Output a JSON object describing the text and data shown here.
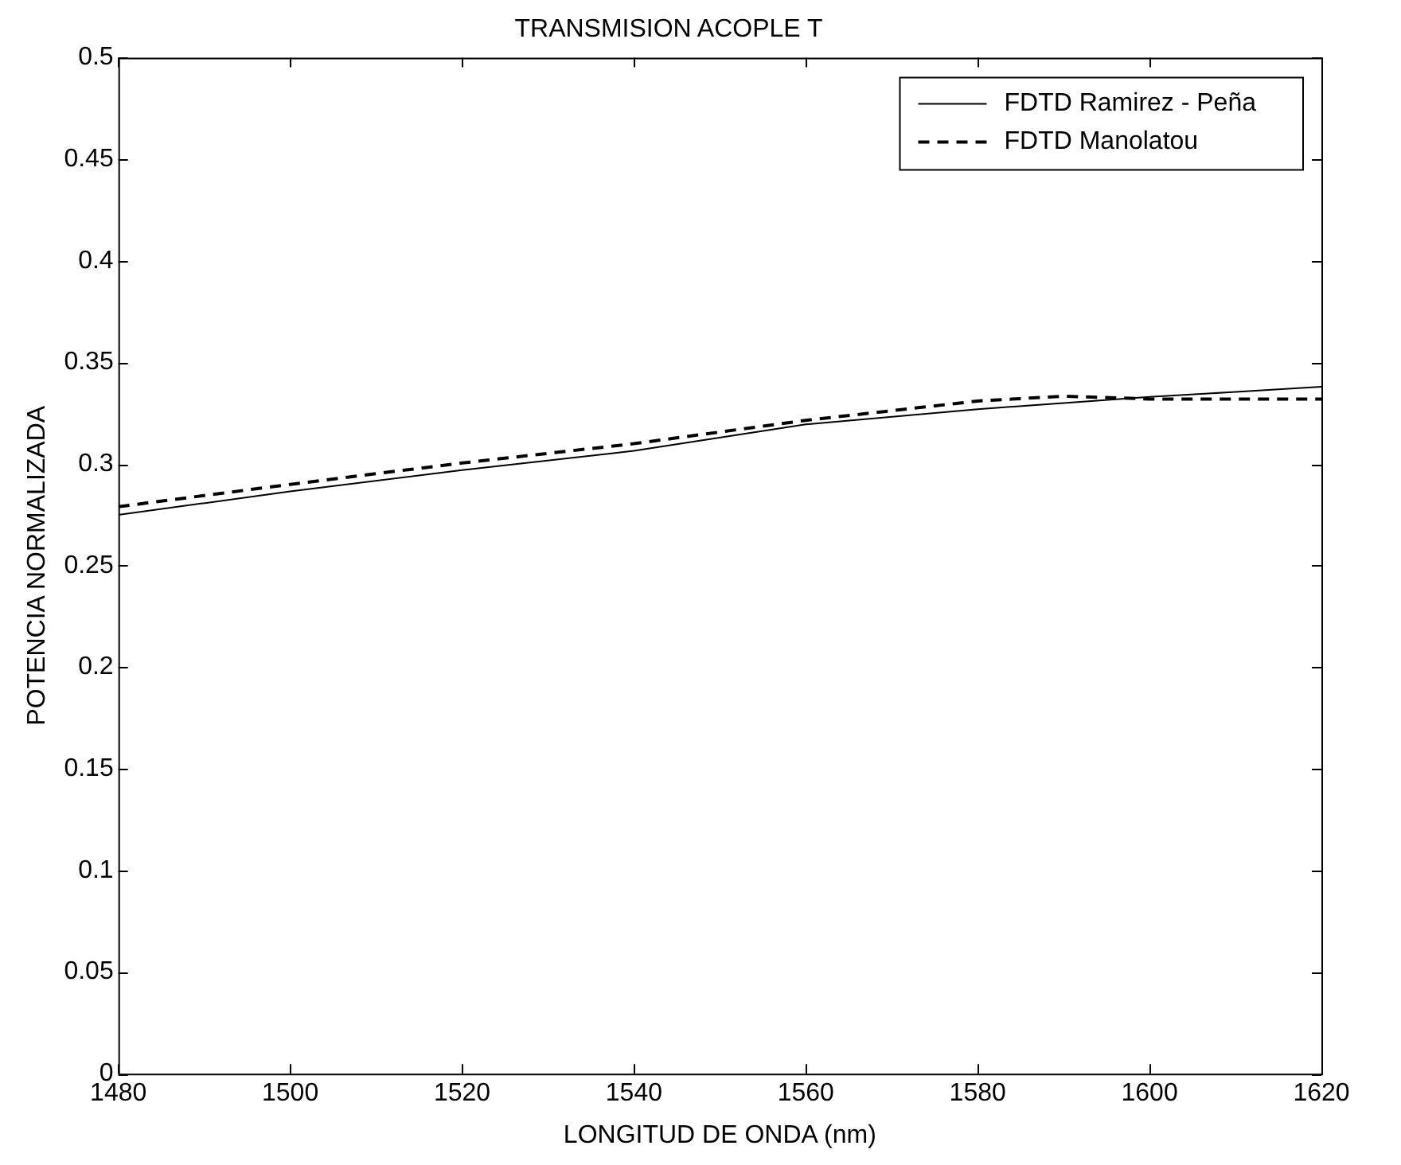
{
  "chart_data": {
    "type": "line",
    "title": "TRANSMISION ACOPLE T",
    "xlabel": "LONGITUD DE ONDA (nm)",
    "ylabel": "POTENCIA NORMALIZADA",
    "x": [
      1480,
      1500,
      1520,
      1540,
      1560,
      1580,
      1590,
      1600,
      1610,
      1620
    ],
    "series": [
      {
        "name": "FDTD Ramirez - Peña",
        "color": "#000000",
        "line_style": "solid",
        "values": [
          0.275,
          0.2865,
          0.297,
          0.3065,
          0.3195,
          0.327,
          0.33,
          0.333,
          0.3355,
          0.338
        ]
      },
      {
        "name": "FDTD Manolatou",
        "color": "#000000",
        "line_style": "dashed",
        "values": [
          0.279,
          0.29,
          0.3005,
          0.31,
          0.3215,
          0.331,
          0.3334,
          0.332,
          0.332,
          0.332
        ]
      }
    ],
    "xlim": [
      1480,
      1620
    ],
    "xticks": [
      1480,
      1500,
      1520,
      1540,
      1560,
      1580,
      1600,
      1620
    ],
    "ylim": [
      0,
      0.5
    ],
    "yticks": [
      0,
      0.05,
      0.1,
      0.15,
      0.2,
      0.25,
      0.3,
      0.35,
      0.4,
      0.45,
      0.5
    ],
    "grid": false,
    "legend": "top right",
    "marker": "none"
  }
}
